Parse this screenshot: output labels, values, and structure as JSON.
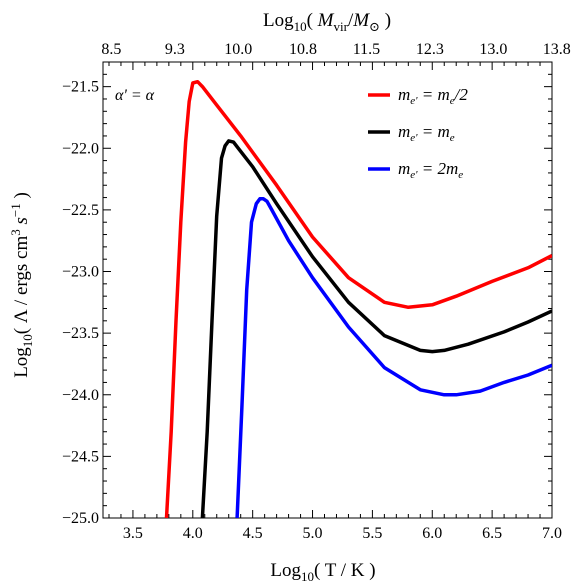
{
  "chart_data": {
    "type": "line",
    "xlabel": "Log10( T / K )",
    "ylabel": "Log10( Λ / ergs cm3 s−1 )",
    "top_xlabel": "Log10( Mvir/M⊙ )",
    "annotation": "α' = α",
    "xlim": [
      3.25,
      7.0
    ],
    "ylim": [
      -25.0,
      -21.3
    ],
    "x_ticks": [
      3.5,
      4.0,
      4.5,
      5.0,
      5.5,
      6.0,
      6.5,
      7.0
    ],
    "x_tick_labels": [
      "3.5",
      "4.0",
      "4.5",
      "5.0",
      "5.5",
      "6.0",
      "6.5",
      "7.0"
    ],
    "y_ticks": [
      -25.0,
      -24.5,
      -24.0,
      -23.5,
      -23.0,
      -22.5,
      -22.0,
      -21.5
    ],
    "y_tick_labels": [
      "−25.0",
      "−24.5",
      "−24.0",
      "−23.5",
      "−23.0",
      "−22.5",
      "−22.0",
      "−21.5"
    ],
    "top_ticks": [
      {
        "x": 3.32,
        "label": "8.5"
      },
      {
        "x": 3.85,
        "label": "9.3"
      },
      {
        "x": 4.38,
        "label": "10.0"
      },
      {
        "x": 4.92,
        "label": "10.8"
      },
      {
        "x": 5.45,
        "label": "11.5"
      },
      {
        "x": 5.98,
        "label": "12.3"
      },
      {
        "x": 6.51,
        "label": "13.0"
      },
      {
        "x": 7.04,
        "label": "13.8"
      }
    ],
    "grid": false,
    "legend_position": "top-right",
    "series": [
      {
        "name": "me' = me/2",
        "legend": {
          "base": "m",
          "sub": "e'",
          "rhs": " = m",
          "rhs_sub": "e",
          "tail": "/2"
        },
        "color": "#ff0000",
        "x": [
          3.78,
          3.82,
          3.86,
          3.9,
          3.94,
          3.97,
          4.0,
          4.04,
          4.08,
          4.2,
          4.4,
          4.7,
          5.0,
          5.3,
          5.6,
          5.8,
          6.0,
          6.2,
          6.5,
          6.8,
          7.0
        ],
        "y": [
          -25.0,
          -24.3,
          -23.4,
          -22.6,
          -21.95,
          -21.62,
          -21.47,
          -21.46,
          -21.5,
          -21.65,
          -21.9,
          -22.3,
          -22.72,
          -23.05,
          -23.25,
          -23.29,
          -23.27,
          -23.2,
          -23.08,
          -22.97,
          -22.87
        ]
      },
      {
        "name": "me' = me",
        "legend": {
          "base": "m",
          "sub": "e'",
          "rhs": " = m",
          "rhs_sub": "e",
          "tail": ""
        },
        "color": "#000000",
        "x": [
          4.08,
          4.12,
          4.16,
          4.2,
          4.24,
          4.27,
          4.3,
          4.34,
          4.38,
          4.5,
          4.7,
          5.0,
          5.3,
          5.6,
          5.9,
          6.0,
          6.1,
          6.3,
          6.6,
          6.8,
          7.0
        ],
        "y": [
          -25.0,
          -24.3,
          -23.4,
          -22.55,
          -22.08,
          -21.98,
          -21.94,
          -21.95,
          -22.0,
          -22.15,
          -22.45,
          -22.88,
          -23.25,
          -23.52,
          -23.64,
          -23.65,
          -23.64,
          -23.59,
          -23.49,
          -23.41,
          -23.32
        ]
      },
      {
        "name": "me' = 2me",
        "legend": {
          "base": "m",
          "sub": "e'",
          "rhs": " = 2m",
          "rhs_sub": "e",
          "tail": ""
        },
        "color": "#0000ff",
        "x": [
          4.37,
          4.41,
          4.45,
          4.49,
          4.53,
          4.56,
          4.59,
          4.62,
          4.66,
          4.8,
          5.0,
          5.3,
          5.6,
          5.9,
          6.1,
          6.2,
          6.4,
          6.6,
          6.8,
          7.0
        ],
        "y": [
          -25.0,
          -24.1,
          -23.15,
          -22.6,
          -22.45,
          -22.41,
          -22.41,
          -22.43,
          -22.5,
          -22.75,
          -23.05,
          -23.45,
          -23.78,
          -23.96,
          -24.0,
          -24.0,
          -23.97,
          -23.9,
          -23.84,
          -23.76
        ]
      }
    ]
  }
}
